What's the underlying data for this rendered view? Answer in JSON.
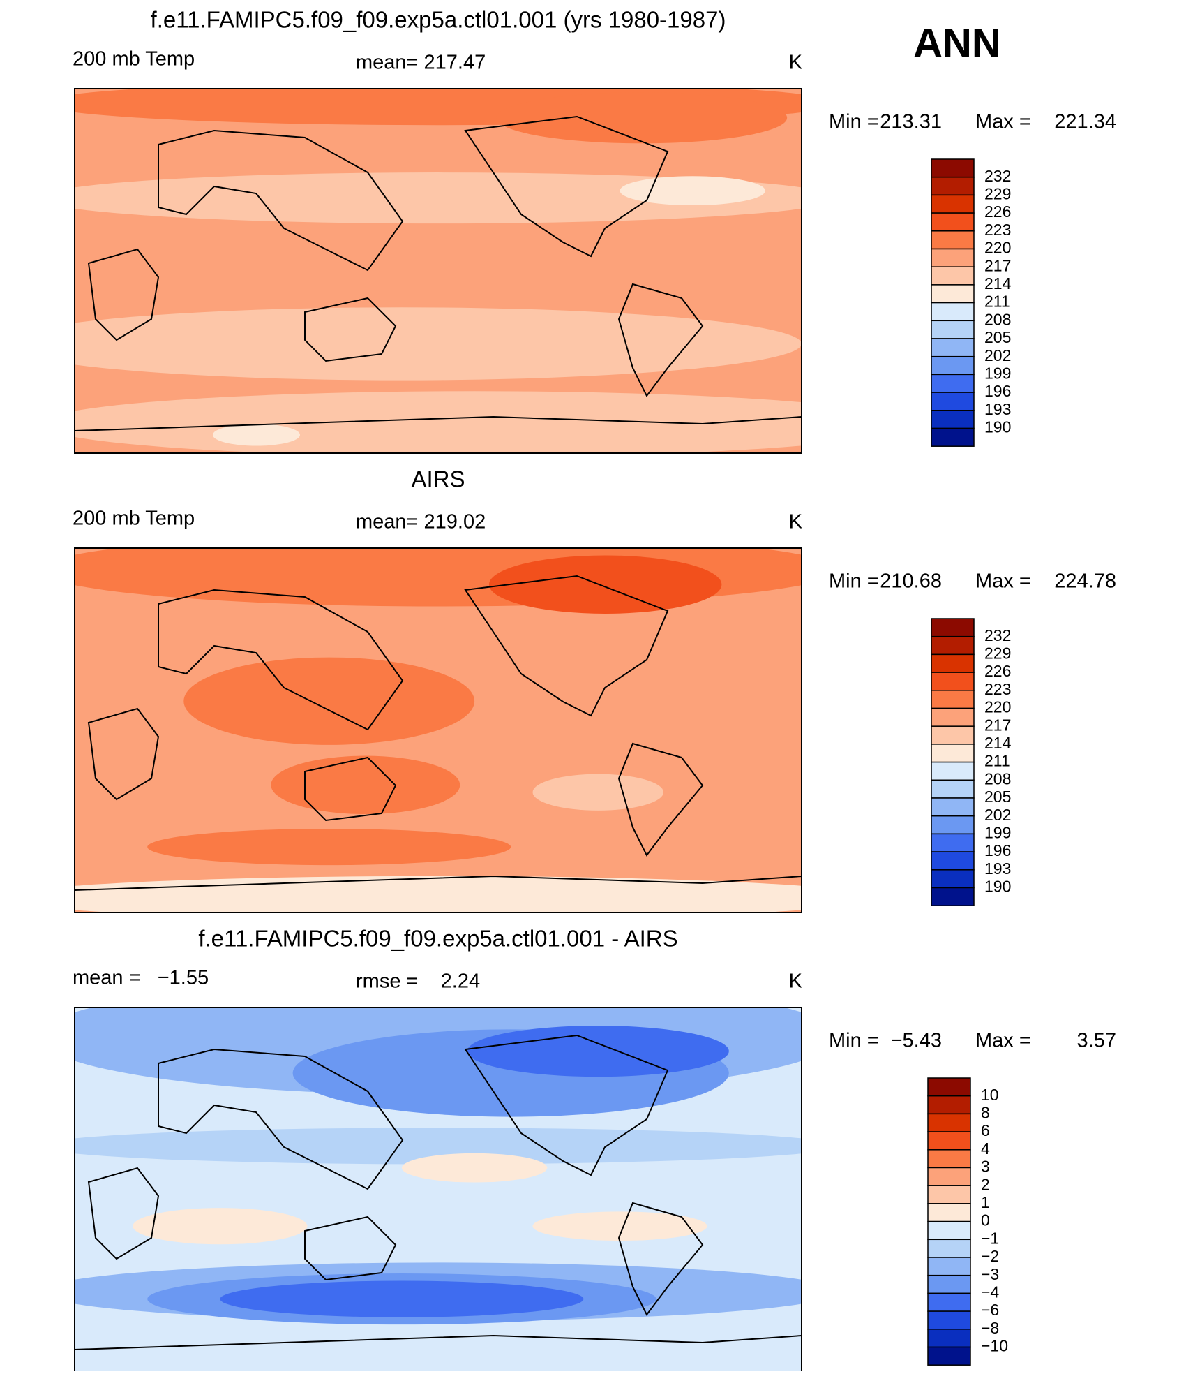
{
  "header": {
    "season": "ANN"
  },
  "panels": [
    {
      "title": "f.e11.FAMIPC5.f09_f09.exp5a.ctl01.001 (yrs 1980-1987)",
      "left_label": "200 mb Temp",
      "center_label": "mean= 217.47",
      "units": "K",
      "min_label": "Min =",
      "min": "213.31",
      "max_label": "Max =",
      "max": "221.34",
      "colorbar": {
        "labels": [
          "232",
          "229",
          "226",
          "223",
          "220",
          "217",
          "214",
          "211",
          "208",
          "205",
          "202",
          "199",
          "196",
          "193",
          "190"
        ]
      }
    },
    {
      "title": "AIRS",
      "left_label": "200 mb Temp",
      "center_label": "mean= 219.02",
      "units": "K",
      "min_label": "Min =",
      "min": "210.68",
      "max_label": "Max =",
      "max": "224.78",
      "colorbar": {
        "labels": [
          "232",
          "229",
          "226",
          "223",
          "220",
          "217",
          "214",
          "211",
          "208",
          "205",
          "202",
          "199",
          "196",
          "193",
          "190"
        ]
      }
    },
    {
      "title": "f.e11.FAMIPC5.f09_f09.exp5a.ctl01.001 - AIRS",
      "left_label": "mean =   −1.55",
      "center_label": "rmse =    2.24",
      "units": "K",
      "min_label": "Min =",
      "min": "−5.43",
      "max_label": "Max =",
      "max": "3.57",
      "colorbar": {
        "labels": [
          "10",
          "8",
          "6",
          "4",
          "3",
          "2",
          "1",
          "0",
          "−1",
          "−2",
          "−3",
          "−4",
          "−6",
          "−8",
          "−10"
        ]
      }
    }
  ],
  "colorbar_colors": [
    "#8c0a00",
    "#b31d00",
    "#d93300",
    "#f2501c",
    "#fa7a45",
    "#fca27a",
    "#fdc6a8",
    "#fde9d8",
    "#d9eafb",
    "#b5d3f7",
    "#90b6f5",
    "#6b98f2",
    "#3f6cf0",
    "#1f4ae0",
    "#0a2fbf",
    "#00128c"
  ]
}
